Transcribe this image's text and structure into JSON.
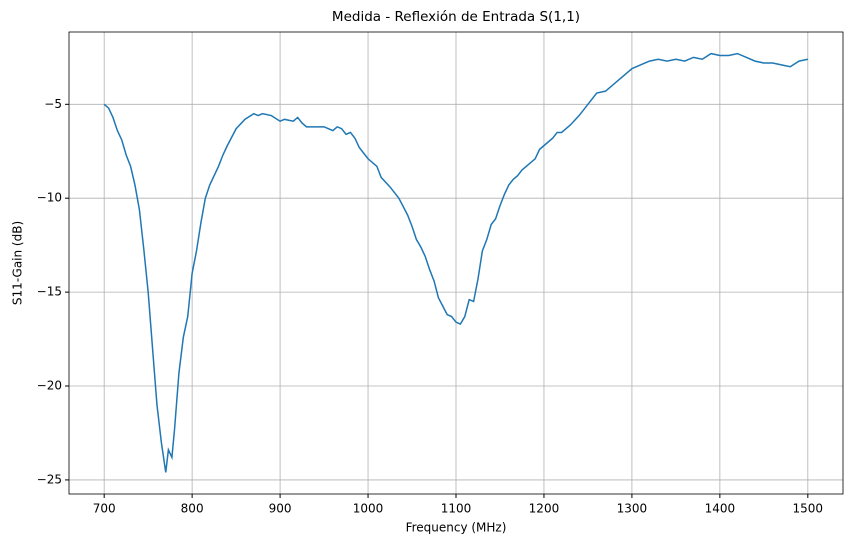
{
  "chart_data": {
    "type": "line",
    "title": "Medida - Reflexión de Entrada S(1,1)",
    "x_label": "Frequency (MHz)",
    "y_label": "S11-Gain (dB)",
    "x": [
      700,
      705,
      710,
      715,
      720,
      725,
      730,
      735,
      740,
      745,
      750,
      755,
      760,
      765,
      770,
      773,
      777,
      780,
      785,
      790,
      795,
      800,
      805,
      810,
      815,
      820,
      830,
      835,
      840,
      850,
      860,
      870,
      875,
      880,
      890,
      900,
      905,
      915,
      920,
      925,
      930,
      940,
      950,
      960,
      965,
      970,
      975,
      980,
      985,
      990,
      995,
      1000,
      1010,
      1015,
      1025,
      1035,
      1045,
      1050,
      1055,
      1060,
      1065,
      1070,
      1075,
      1080,
      1090,
      1095,
      1100,
      1105,
      1110,
      1115,
      1120,
      1125,
      1130,
      1135,
      1140,
      1145,
      1150,
      1155,
      1160,
      1165,
      1170,
      1175,
      1180,
      1190,
      1195,
      1200,
      1210,
      1215,
      1220,
      1230,
      1240,
      1250,
      1260,
      1270,
      1280,
      1290,
      1300,
      1310,
      1320,
      1330,
      1340,
      1350,
      1360,
      1370,
      1380,
      1390,
      1400,
      1410,
      1420,
      1430,
      1440,
      1450,
      1460,
      1470,
      1480,
      1490,
      1500
    ],
    "series": [
      {
        "color": "#1f77b4",
        "values": [
          -5.0,
          -5.2,
          -5.7,
          -6.4,
          -6.9,
          -7.7,
          -8.3,
          -9.3,
          -10.6,
          -12.7,
          -15.0,
          -18.0,
          -21.0,
          -23.0,
          -24.6,
          -23.4,
          -23.8,
          -22.3,
          -19.3,
          -17.4,
          -16.3,
          -14.0,
          -12.8,
          -11.3,
          -10.0,
          -9.3,
          -8.3,
          -7.7,
          -7.2,
          -6.3,
          -5.8,
          -5.5,
          -5.6,
          -5.5,
          -5.6,
          -5.9,
          -5.8,
          -5.9,
          -5.7,
          -6.0,
          -6.2,
          -6.2,
          -6.2,
          -6.4,
          -6.2,
          -6.3,
          -6.6,
          -6.5,
          -6.8,
          -7.3,
          -7.6,
          -7.9,
          -8.3,
          -8.9,
          -9.4,
          -10.0,
          -10.9,
          -11.5,
          -12.2,
          -12.6,
          -13.1,
          -13.8,
          -14.4,
          -15.3,
          -16.2,
          -16.3,
          -16.6,
          -16.7,
          -16.3,
          -15.4,
          -15.5,
          -14.3,
          -12.8,
          -12.2,
          -11.4,
          -11.1,
          -10.4,
          -9.8,
          -9.3,
          -9.0,
          -8.8,
          -8.5,
          -8.3,
          -7.9,
          -7.4,
          -7.2,
          -6.8,
          -6.5,
          -6.5,
          -6.1,
          -5.6,
          -5.0,
          -4.4,
          -4.3,
          -3.9,
          -3.5,
          -3.1,
          -2.9,
          -2.7,
          -2.6,
          -2.7,
          -2.6,
          -2.7,
          -2.5,
          -2.6,
          -2.3,
          -2.4,
          -2.4,
          -2.3,
          -2.5,
          -2.7,
          -2.8,
          -2.8,
          -2.9,
          -3.0,
          -2.7,
          -2.6
        ]
      }
    ],
    "xlim": [
      660,
      1540
    ],
    "ylim": [
      -25.75,
      -1.15
    ],
    "xticks": [
      700,
      800,
      900,
      1000,
      1100,
      1200,
      1300,
      1400,
      1500
    ],
    "yticks": [
      {
        "value": -25,
        "label": "−25"
      },
      {
        "value": -20,
        "label": "−20"
      },
      {
        "value": -15,
        "label": "−15"
      },
      {
        "value": -10,
        "label": "−10"
      },
      {
        "value": -5,
        "label": "−5"
      }
    ],
    "grid": true
  }
}
